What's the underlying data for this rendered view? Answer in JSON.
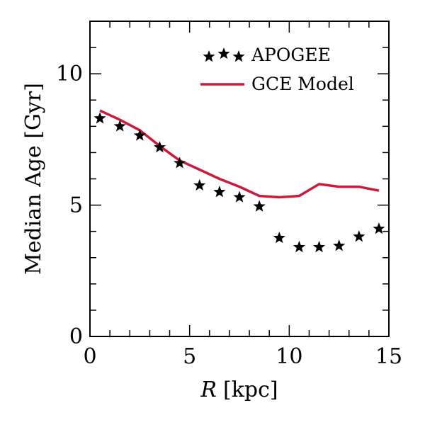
{
  "chart_data": {
    "type": "scatter",
    "xlabel": "R [kpc]",
    "xlabel_var": "R",
    "xlabel_unit": "[kpc]",
    "ylabel": "Median Age [Gyr]",
    "xlim": [
      0,
      15
    ],
    "ylim": [
      0,
      12
    ],
    "x_ticks": [
      0,
      5,
      10,
      15
    ],
    "y_ticks": [
      0,
      5,
      10
    ],
    "x_minor_step": 1,
    "y_minor_step": 1,
    "grid": false,
    "legend_position": "top-right",
    "series": [
      {
        "name": "APOGEE",
        "kind": "scatter",
        "marker": "star",
        "color": "#000000",
        "x": [
          0.5,
          1.5,
          2.5,
          3.5,
          4.5,
          5.5,
          6.5,
          7.5,
          8.5,
          9.5,
          10.5,
          11.5,
          12.5,
          13.5,
          14.5
        ],
        "y": [
          8.3,
          8.0,
          7.65,
          7.2,
          6.6,
          5.75,
          5.5,
          5.3,
          4.95,
          3.75,
          3.4,
          3.4,
          3.45,
          3.8,
          4.1
        ]
      },
      {
        "name": "GCE Model",
        "kind": "line",
        "color": "#cc1a3c",
        "x": [
          0.5,
          1.5,
          2.5,
          3.5,
          4.5,
          5.5,
          6.5,
          7.5,
          8.5,
          9.5,
          10.5,
          11.5,
          12.5,
          13.5,
          14.5
        ],
        "y": [
          8.6,
          8.25,
          7.85,
          7.25,
          6.7,
          6.35,
          6.0,
          5.7,
          5.35,
          5.3,
          5.35,
          5.8,
          5.7,
          5.7,
          5.55
        ]
      }
    ]
  }
}
